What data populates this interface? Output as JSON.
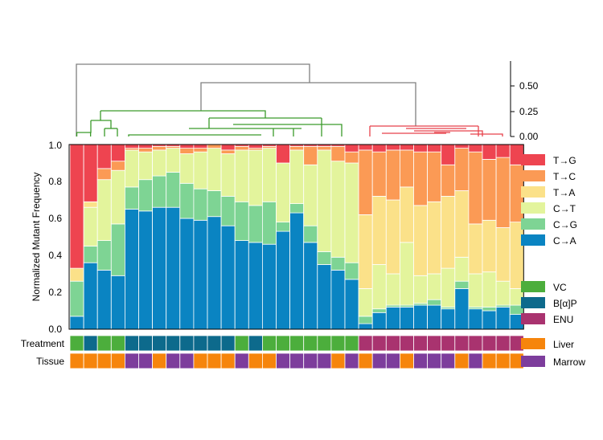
{
  "chart_data": {
    "type": "bar",
    "stacked": true,
    "ylabel": "Normalized Mutant Frequency",
    "ylim": [
      0,
      1
    ],
    "yticks": [
      "0.0",
      "0.2",
      "0.4",
      "0.6",
      "0.8",
      "1.0"
    ],
    "dendrogram_ticks": [
      "0.00",
      "0.25",
      "0.50"
    ],
    "series_order": [
      "C→A",
      "C→G",
      "C→T",
      "T→A",
      "T→C",
      "T→G"
    ],
    "colors": {
      "C→A": "#0a84c2",
      "C→G": "#7ed494",
      "C→T": "#e3f49c",
      "T→A": "#fbe189",
      "T→C": "#fb9a55",
      "T→G": "#ee4450",
      "VC": "#4cae3c",
      "B[α]P": "#0d6a8c",
      "ENU": "#a9336f",
      "Liver": "#f6850c",
      "Marrow": "#7d3d9c",
      "dend_top": "#7f7f7f",
      "dend_green": "#3a9a2a",
      "dend_red": "#e8414a"
    },
    "legend_mutations": [
      "T→G",
      "T→C",
      "T→A",
      "C→T",
      "C→G",
      "C→A"
    ],
    "legend_treatment": [
      "VC",
      "B[α]P",
      "ENU"
    ],
    "legend_tissue": [
      "Liver",
      "Marrow"
    ],
    "row_labels": {
      "treatment": "Treatment",
      "tissue": "Tissue"
    },
    "samples": [
      {
        "CA": 0.07,
        "CG": 0.19,
        "CT": 0.0,
        "TA": 0.07,
        "TC": 0.0,
        "TG": 0.67,
        "treatment": "VC",
        "tissue": "Liver"
      },
      {
        "CA": 0.36,
        "CG": 0.09,
        "CT": 0.21,
        "TA": 0.03,
        "TC": 0.0,
        "TG": 0.31,
        "treatment": "B[α]P",
        "tissue": "Liver"
      },
      {
        "CA": 0.32,
        "CG": 0.16,
        "CT": 0.33,
        "TA": 0.0,
        "TC": 0.06,
        "TG": 0.13,
        "treatment": "VC",
        "tissue": "Liver"
      },
      {
        "CA": 0.29,
        "CG": 0.28,
        "CT": 0.29,
        "TA": 0.0,
        "TC": 0.05,
        "TG": 0.09,
        "treatment": "VC",
        "tissue": "Liver"
      },
      {
        "CA": 0.65,
        "CG": 0.12,
        "CT": 0.2,
        "TA": 0.0,
        "TC": 0.01,
        "TG": 0.02,
        "treatment": "B[α]P",
        "tissue": "Marrow"
      },
      {
        "CA": 0.64,
        "CG": 0.17,
        "CT": 0.15,
        "TA": 0.0,
        "TC": 0.02,
        "TG": 0.02,
        "treatment": "B[α]P",
        "tissue": "Marrow"
      },
      {
        "CA": 0.66,
        "CG": 0.17,
        "CT": 0.14,
        "TA": 0.0,
        "TC": 0.02,
        "TG": 0.01,
        "treatment": "B[α]P",
        "tissue": "Liver"
      },
      {
        "CA": 0.66,
        "CG": 0.19,
        "CT": 0.13,
        "TA": 0.0,
        "TC": 0.01,
        "TG": 0.01,
        "treatment": "B[α]P",
        "tissue": "Marrow"
      },
      {
        "CA": 0.6,
        "CG": 0.19,
        "CT": 0.16,
        "TA": 0.0,
        "TC": 0.03,
        "TG": 0.02,
        "treatment": "B[α]P",
        "tissue": "Marrow"
      },
      {
        "CA": 0.59,
        "CG": 0.17,
        "CT": 0.2,
        "TA": 0.0,
        "TC": 0.02,
        "TG": 0.02,
        "treatment": "B[α]P",
        "tissue": "Liver"
      },
      {
        "CA": 0.61,
        "CG": 0.14,
        "CT": 0.23,
        "TA": 0.0,
        "TC": 0.02,
        "TG": 0.0,
        "treatment": "B[α]P",
        "tissue": "Liver"
      },
      {
        "CA": 0.56,
        "CG": 0.16,
        "CT": 0.23,
        "TA": 0.0,
        "TC": 0.02,
        "TG": 0.03,
        "treatment": "B[α]P",
        "tissue": "Liver"
      },
      {
        "CA": 0.48,
        "CG": 0.21,
        "CT": 0.28,
        "TA": 0.0,
        "TC": 0.02,
        "TG": 0.01,
        "treatment": "VC",
        "tissue": "Marrow"
      },
      {
        "CA": 0.47,
        "CG": 0.2,
        "CT": 0.3,
        "TA": 0.0,
        "TC": 0.01,
        "TG": 0.02,
        "treatment": "B[α]P",
        "tissue": "Liver"
      },
      {
        "CA": 0.46,
        "CG": 0.23,
        "CT": 0.29,
        "TA": 0.0,
        "TC": 0.01,
        "TG": 0.01,
        "treatment": "VC",
        "tissue": "Liver"
      },
      {
        "CA": 0.53,
        "CG": 0.05,
        "CT": 0.32,
        "TA": 0.0,
        "TC": 0.0,
        "TG": 0.1,
        "treatment": "VC",
        "tissue": "Marrow"
      },
      {
        "CA": 0.63,
        "CG": 0.05,
        "CT": 0.29,
        "TA": 0.0,
        "TC": 0.02,
        "TG": 0.01,
        "treatment": "VC",
        "tissue": "Marrow"
      },
      {
        "CA": 0.47,
        "CG": 0.09,
        "CT": 0.33,
        "TA": 0.0,
        "TC": 0.1,
        "TG": 0.01,
        "treatment": "VC",
        "tissue": "Marrow"
      },
      {
        "CA": 0.35,
        "CG": 0.07,
        "CT": 0.55,
        "TA": 0.0,
        "TC": 0.02,
        "TG": 0.01,
        "treatment": "VC",
        "tissue": "Marrow"
      },
      {
        "CA": 0.32,
        "CG": 0.07,
        "CT": 0.52,
        "TA": 0.0,
        "TC": 0.08,
        "TG": 0.01,
        "treatment": "VC",
        "tissue": "Liver"
      },
      {
        "CA": 0.27,
        "CG": 0.09,
        "CT": 0.54,
        "TA": 0.0,
        "TC": 0.06,
        "TG": 0.04,
        "treatment": "VC",
        "tissue": "Marrow"
      },
      {
        "CA": 0.03,
        "CG": 0.04,
        "CT": 0.15,
        "TA": 0.4,
        "TC": 0.35,
        "TG": 0.03,
        "treatment": "ENU",
        "tissue": "Liver"
      },
      {
        "CA": 0.09,
        "CG": 0.02,
        "CT": 0.24,
        "TA": 0.37,
        "TC": 0.24,
        "TG": 0.04,
        "treatment": "ENU",
        "tissue": "Marrow"
      },
      {
        "CA": 0.12,
        "CG": 0.01,
        "CT": 0.17,
        "TA": 0.4,
        "TC": 0.27,
        "TG": 0.03,
        "treatment": "ENU",
        "tissue": "Marrow"
      },
      {
        "CA": 0.12,
        "CG": 0.01,
        "CT": 0.34,
        "TA": 0.3,
        "TC": 0.2,
        "TG": 0.03,
        "treatment": "ENU",
        "tissue": "Liver"
      },
      {
        "CA": 0.13,
        "CG": 0.01,
        "CT": 0.15,
        "TA": 0.38,
        "TC": 0.29,
        "TG": 0.04,
        "treatment": "ENU",
        "tissue": "Marrow"
      },
      {
        "CA": 0.13,
        "CG": 0.03,
        "CT": 0.14,
        "TA": 0.39,
        "TC": 0.27,
        "TG": 0.04,
        "treatment": "ENU",
        "tissue": "Marrow"
      },
      {
        "CA": 0.11,
        "CG": 0.01,
        "CT": 0.21,
        "TA": 0.39,
        "TC": 0.17,
        "TG": 0.11,
        "treatment": "ENU",
        "tissue": "Marrow"
      },
      {
        "CA": 0.22,
        "CG": 0.04,
        "CT": 0.13,
        "TA": 0.36,
        "TC": 0.23,
        "TG": 0.02,
        "treatment": "ENU",
        "tissue": "Liver"
      },
      {
        "CA": 0.11,
        "CG": 0.01,
        "CT": 0.18,
        "TA": 0.27,
        "TC": 0.39,
        "TG": 0.04,
        "treatment": "ENU",
        "tissue": "Marrow"
      },
      {
        "CA": 0.1,
        "CG": 0.02,
        "CT": 0.19,
        "TA": 0.28,
        "TC": 0.33,
        "TG": 0.08,
        "treatment": "ENU",
        "tissue": "Liver"
      },
      {
        "CA": 0.12,
        "CG": 0.01,
        "CT": 0.13,
        "TA": 0.29,
        "TC": 0.38,
        "TG": 0.07,
        "treatment": "ENU",
        "tissue": "Liver"
      },
      {
        "CA": 0.08,
        "CG": 0.05,
        "CT": 0.09,
        "TA": 0.36,
        "TC": 0.31,
        "TG": 0.11,
        "treatment": "ENU",
        "tissue": "Liver"
      }
    ]
  }
}
